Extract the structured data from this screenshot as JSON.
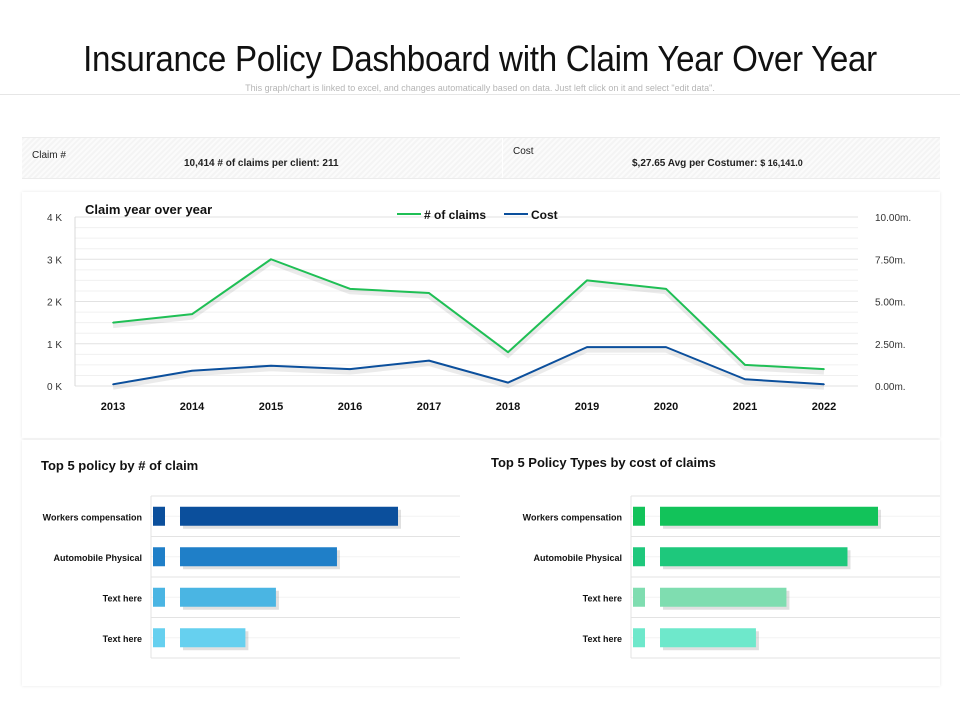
{
  "header": {
    "title": "Insurance Policy Dashboard with Claim Year Over Year",
    "subtitle": "This graph/chart is linked to excel, and changes automatically  based on data. Just left click on it and select \"edit data\"."
  },
  "kpis": {
    "claim_label": "Claim #",
    "claim_value": "10,414 # of claims per client: 211",
    "cost_label": "Cost",
    "cost_value_main": "$,27.65 Avg per Costumer: ",
    "cost_value_small": "$ 16,141.0"
  },
  "colors": {
    "claims_line": "#1fbf55",
    "cost_line": "#0b4f9c",
    "bars_left": [
      "#0b4f9c",
      "#1f7fc8",
      "#4ab5e3",
      "#66d0ef"
    ],
    "bars_right": [
      "#12c35a",
      "#1ec87c",
      "#7fddb0",
      "#6ee8cb"
    ]
  },
  "chart_data": [
    {
      "type": "line",
      "title": "Claim year over year",
      "x": [
        "2013",
        "2014",
        "2015",
        "2016",
        "2017",
        "2018",
        "2019",
        "2020",
        "2021",
        "2022"
      ],
      "series": [
        {
          "name": "# of claims",
          "axis": "left",
          "values": [
            1500,
            1700,
            3000,
            2300,
            2200,
            800,
            2500,
            2300,
            500,
            400
          ]
        },
        {
          "name": "Cost",
          "axis": "right",
          "values": [
            0.1,
            0.9,
            1.2,
            1.0,
            1.5,
            0.2,
            2.3,
            2.3,
            0.4,
            0.1
          ]
        }
      ],
      "y_left": {
        "ticks": [
          "0 K",
          "1 K",
          "2 K",
          "3 K",
          "4 K"
        ],
        "ylim": [
          0,
          4000
        ]
      },
      "y_right": {
        "ticks": [
          "0.00m.",
          "2.50m.",
          "5.00m.",
          "7.50m.",
          "10.00m."
        ],
        "ylim": [
          0,
          10
        ]
      },
      "legend_position": "top-center",
      "grid": true
    },
    {
      "type": "bar",
      "orientation": "horizontal",
      "title": "Top 5 policy by # of claim",
      "categories": [
        "Workers compensation",
        "Automobile Physical",
        "Text here",
        "Text here"
      ],
      "values": [
        100,
        72,
        44,
        30
      ]
    },
    {
      "type": "bar",
      "orientation": "horizontal",
      "title": "Top 5 Policy Types by cost of claims",
      "categories": [
        "Workers compensation",
        "Automobile Physical",
        "Text here",
        "Text here"
      ],
      "values": [
        100,
        86,
        58,
        44
      ]
    }
  ]
}
